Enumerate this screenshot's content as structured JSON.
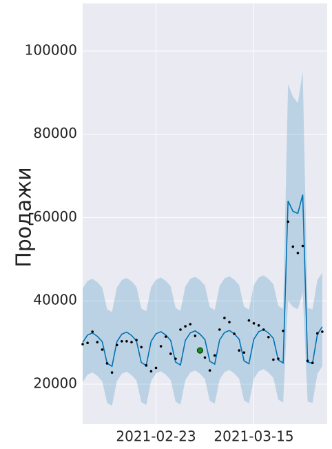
{
  "chart_data": {
    "type": "forecast",
    "ylabel": "Продажи",
    "x": [
      "2021-02-08",
      "2021-02-09",
      "2021-02-10",
      "2021-02-11",
      "2021-02-12",
      "2021-02-13",
      "2021-02-14",
      "2021-02-15",
      "2021-02-16",
      "2021-02-17",
      "2021-02-18",
      "2021-02-19",
      "2021-02-20",
      "2021-02-21",
      "2021-02-22",
      "2021-02-23",
      "2021-02-24",
      "2021-02-25",
      "2021-02-26",
      "2021-02-27",
      "2021-02-28",
      "2021-03-01",
      "2021-03-02",
      "2021-03-03",
      "2021-03-04",
      "2021-03-05",
      "2021-03-06",
      "2021-03-07",
      "2021-03-08",
      "2021-03-09",
      "2021-03-10",
      "2021-03-11",
      "2021-03-12",
      "2021-03-13",
      "2021-03-14",
      "2021-03-15",
      "2021-03-16",
      "2021-03-17",
      "2021-03-18",
      "2021-03-19",
      "2021-03-20",
      "2021-03-21",
      "2021-03-22",
      "2021-03-23",
      "2021-03-24",
      "2021-03-25",
      "2021-03-26",
      "2021-03-27",
      "2021-03-28",
      "2021-03-29"
    ],
    "actual": [
      29600,
      29900,
      32600,
      30100,
      28300,
      25000,
      22800,
      29400,
      30300,
      30300,
      30100,
      30600,
      28900,
      24500,
      23100,
      23900,
      29100,
      31400,
      27300,
      26100,
      33100,
      33900,
      34400,
      31600,
      null,
      26400,
      23300,
      26900,
      33100,
      35900,
      34900,
      32100,
      28100,
      27600,
      35300,
      34600,
      34100,
      33100,
      31300,
      25900,
      26100,
      32800,
      59000,
      53000,
      51500,
      53200,
      25600,
      25100,
      32200,
      32600
    ],
    "yhat": [
      30000,
      31800,
      32300,
      31500,
      30200,
      25000,
      24300,
      30200,
      32000,
      32500,
      31700,
      30400,
      25200,
      24500,
      30300,
      32100,
      32600,
      31800,
      30500,
      25300,
      24600,
      30500,
      32300,
      32800,
      32000,
      30700,
      25500,
      24800,
      30600,
      32400,
      32900,
      32100,
      30800,
      25600,
      24900,
      30800,
      32600,
      33100,
      32300,
      31000,
      25800,
      25100,
      64000,
      61500,
      61000,
      65500,
      25300,
      25000,
      32000,
      33800
    ],
    "yhat_lower": [
      20500,
      22300,
      22800,
      22000,
      20700,
      15500,
      14800,
      20700,
      22500,
      23000,
      22200,
      20900,
      15700,
      15000,
      20800,
      22600,
      23100,
      22300,
      21000,
      15800,
      15100,
      21000,
      22800,
      23300,
      22500,
      21200,
      16000,
      15300,
      21100,
      22900,
      23400,
      22600,
      21300,
      16100,
      15400,
      21300,
      23100,
      23600,
      22800,
      21500,
      16300,
      15600,
      40000,
      38500,
      38000,
      42000,
      15800,
      15500,
      22500,
      24300
    ],
    "yhat_upper": [
      43000,
      44800,
      45300,
      44500,
      43200,
      38000,
      37300,
      43200,
      45000,
      45500,
      44700,
      43400,
      38200,
      37500,
      43300,
      45100,
      45600,
      44800,
      43500,
      38300,
      37600,
      43500,
      45300,
      45800,
      45000,
      43700,
      38500,
      37800,
      43600,
      45400,
      45900,
      45100,
      43800,
      38600,
      37900,
      43800,
      45600,
      46100,
      45300,
      44000,
      38800,
      38100,
      92000,
      89000,
      87500,
      95000,
      38300,
      38000,
      45000,
      46800
    ],
    "highlight": {
      "x": "2021-03-04",
      "y": 28100,
      "color": "#1a8a1a"
    },
    "line_color": "#0072B2",
    "band_color": "#0072B2",
    "point_color": "#000000",
    "xlim": [
      "2021-02-08",
      "2021-03-30"
    ],
    "xticks": [
      "2021-02-23",
      "2021-03-15"
    ],
    "ylim": [
      10400,
      111400
    ],
    "yticks": [
      20000,
      40000,
      60000,
      80000,
      100000
    ],
    "grid": true
  }
}
